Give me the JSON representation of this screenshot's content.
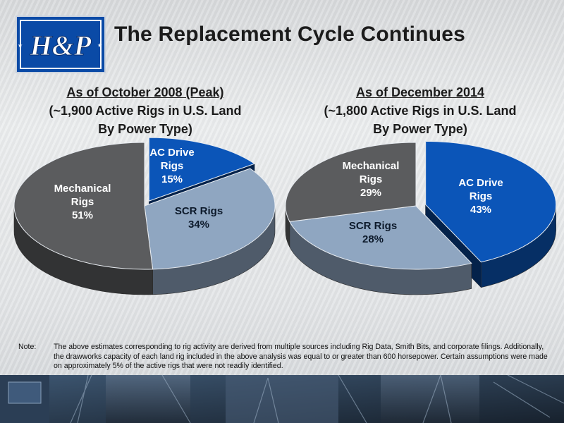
{
  "header": {
    "title": "The Replacement Cycle Continues",
    "logo_text": "H&P"
  },
  "chart_data": [
    {
      "type": "pie",
      "heading": {
        "line1": "As of October 2008 (Peak)",
        "line2": "(~1,900 Active Rigs in U.S. Land",
        "line3": "By Power Type)"
      },
      "slices": [
        {
          "label": "AC Drive Rigs",
          "label_lines": [
            "AC Drive",
            "Rigs"
          ],
          "value": 15,
          "display": "15%",
          "color": "#0b55b8",
          "exploded": true
        },
        {
          "label": "SCR Rigs",
          "label_lines": [
            "SCR Rigs"
          ],
          "value": 34,
          "display": "34%",
          "color": "#8fa6c1",
          "exploded": false
        },
        {
          "label": "Mechanical Rigs",
          "label_lines": [
            "Mechanical",
            "Rigs"
          ],
          "value": 51,
          "display": "51%",
          "color": "#5b5c5e",
          "exploded": false
        }
      ]
    },
    {
      "type": "pie",
      "heading": {
        "line1": "As of December 2014",
        "line2": "(~1,800 Active Rigs in U.S. Land",
        "line3": "By Power Type)"
      },
      "slices": [
        {
          "label": "AC Drive Rigs",
          "label_lines": [
            "AC Drive",
            "Rigs"
          ],
          "value": 43,
          "display": "43%",
          "color": "#0b55b8",
          "exploded": true
        },
        {
          "label": "SCR Rigs",
          "label_lines": [
            "SCR Rigs"
          ],
          "value": 28,
          "display": "28%",
          "color": "#8fa6c1",
          "exploded": false
        },
        {
          "label": "Mechanical Rigs",
          "label_lines": [
            "Mechanical",
            "Rigs"
          ],
          "value": 29,
          "display": "29%",
          "color": "#5b5c5e",
          "exploded": false
        }
      ]
    }
  ],
  "note": {
    "prefix": "Note:",
    "text": "The above estimates corresponding to rig activity are derived from multiple sources including Rig Data, Smith Bits, and corporate filings.  Additionally, the drawworks capacity of each land rig included in the above analysis was equal to or greater than 600 horsepower.  Certain assumptions were made on approximately 5% of the active rigs that were not readily identified."
  }
}
